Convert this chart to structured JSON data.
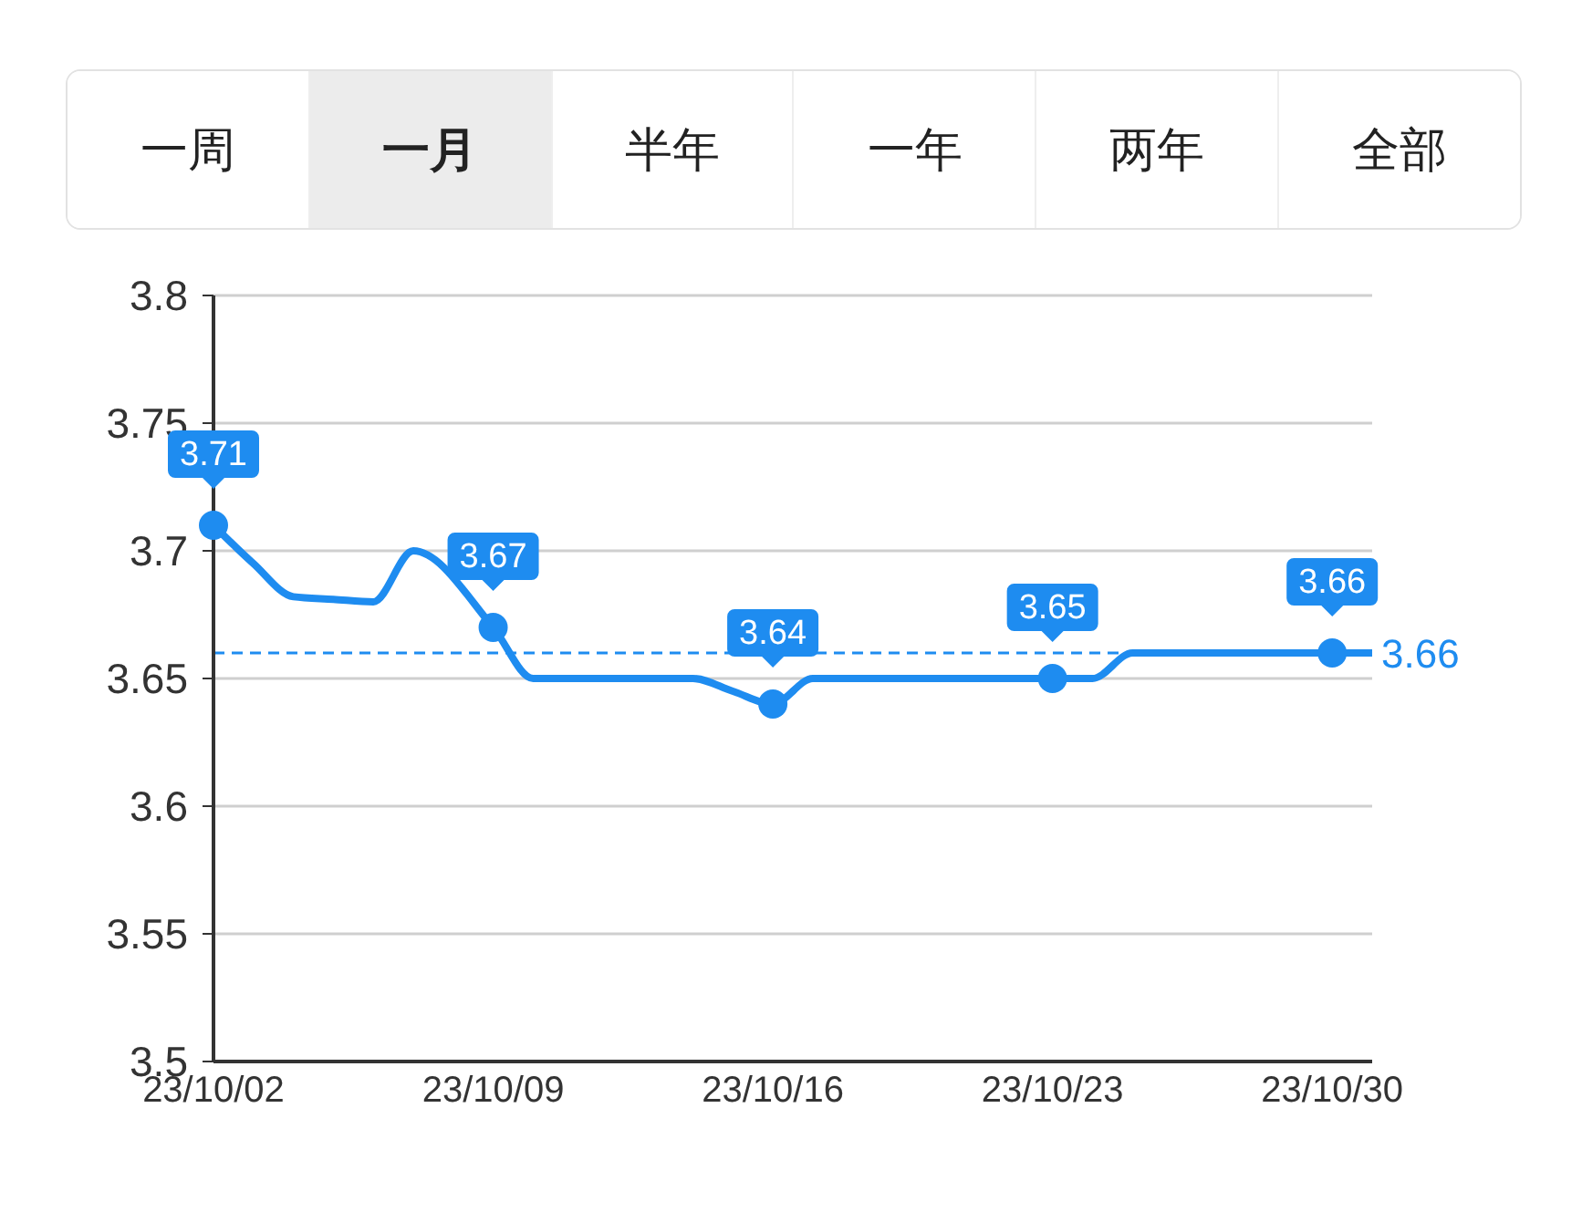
{
  "chart_data": {
    "type": "line",
    "annotations": [
      "一周",
      "一月",
      "半年",
      "一年",
      "两年",
      "全部"
    ],
    "categories": [
      "23/10/02",
      null,
      null,
      null,
      null,
      null,
      null,
      "23/10/09",
      null,
      null,
      null,
      null,
      null,
      null,
      "23/10/16",
      null,
      null,
      null,
      null,
      null,
      null,
      "23/10/23",
      null,
      null,
      null,
      null,
      null,
      null,
      "23/10/30",
      null
    ],
    "series": [
      {
        "color": "#1e8cf0",
        "values": [
          3.71,
          3.695,
          3.682,
          3.681,
          3.68,
          3.7,
          null,
          3.67,
          3.65,
          3.65,
          3.65,
          3.65,
          3.65,
          3.645,
          3.64,
          3.65,
          3.65,
          3.65,
          3.65,
          3.65,
          3.65,
          3.65,
          3.65,
          3.66,
          3.66,
          3.66,
          3.66,
          3.66,
          3.66,
          3.66
        ],
        "value_labels": [
          "3.71",
          null,
          null,
          null,
          null,
          null,
          null,
          "3.67",
          null,
          null,
          null,
          null,
          null,
          null,
          "3.64",
          null,
          null,
          null,
          null,
          null,
          null,
          "3.65",
          null,
          null,
          null,
          null,
          null,
          null,
          "3.66",
          null
        ]
      }
    ],
    "ylim": [
      3.5,
      3.8
    ],
    "yticks": [
      3.5,
      3.55,
      3.6,
      3.65,
      3.7,
      3.75,
      3.8
    ],
    "grid": "y",
    "line_style": "solid",
    "ref_lines": [
      {
        "axis": "y",
        "value": 3.66,
        "label": "3.66",
        "color": "#1e8cf0",
        "line_style": "dashed"
      }
    ]
  }
}
